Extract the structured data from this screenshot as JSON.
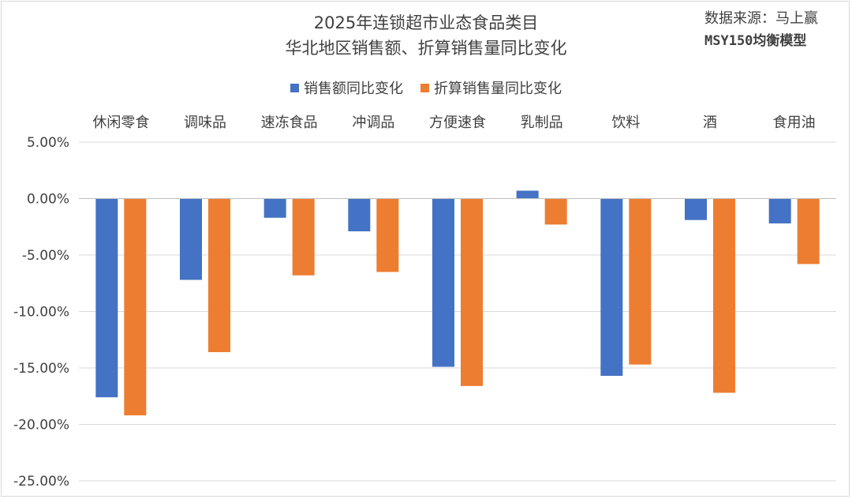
{
  "chart_data": {
    "type": "bar",
    "title_line1": "2025年连锁超市业态食品类目",
    "title_line2": "华北地区销售额、折算销售量同比变化",
    "source_line1": "数据来源：马上赢",
    "source_line2": "MSY150均衡模型",
    "categories": [
      "休闲零食",
      "调味品",
      "速冻食品",
      "冲调品",
      "方便速食",
      "乳制品",
      "饮料",
      "酒",
      "食用油"
    ],
    "series": [
      {
        "name": "销售额同比变化",
        "color": "#4472c4",
        "values": [
          -17.6,
          -7.2,
          -1.7,
          -2.9,
          -14.9,
          0.7,
          -15.7,
          -1.9,
          -2.2
        ]
      },
      {
        "name": "折算销售量同比变化",
        "color": "#ed7d31",
        "values": [
          -19.2,
          -13.6,
          -6.8,
          -6.5,
          -16.6,
          -2.3,
          -14.7,
          -17.2,
          -5.8
        ]
      }
    ],
    "ylim": [
      -25,
      5
    ],
    "yticks": [
      5,
      0,
      -5,
      -10,
      -15,
      -20,
      -25
    ],
    "ytick_labels": [
      "5.00%",
      "0.00%",
      "-5.00%",
      "-10.00%",
      "-15.00%",
      "-20.00%",
      "-25.00%"
    ],
    "grid": true,
    "legend_position": "top-center",
    "category_label_position": "top"
  }
}
